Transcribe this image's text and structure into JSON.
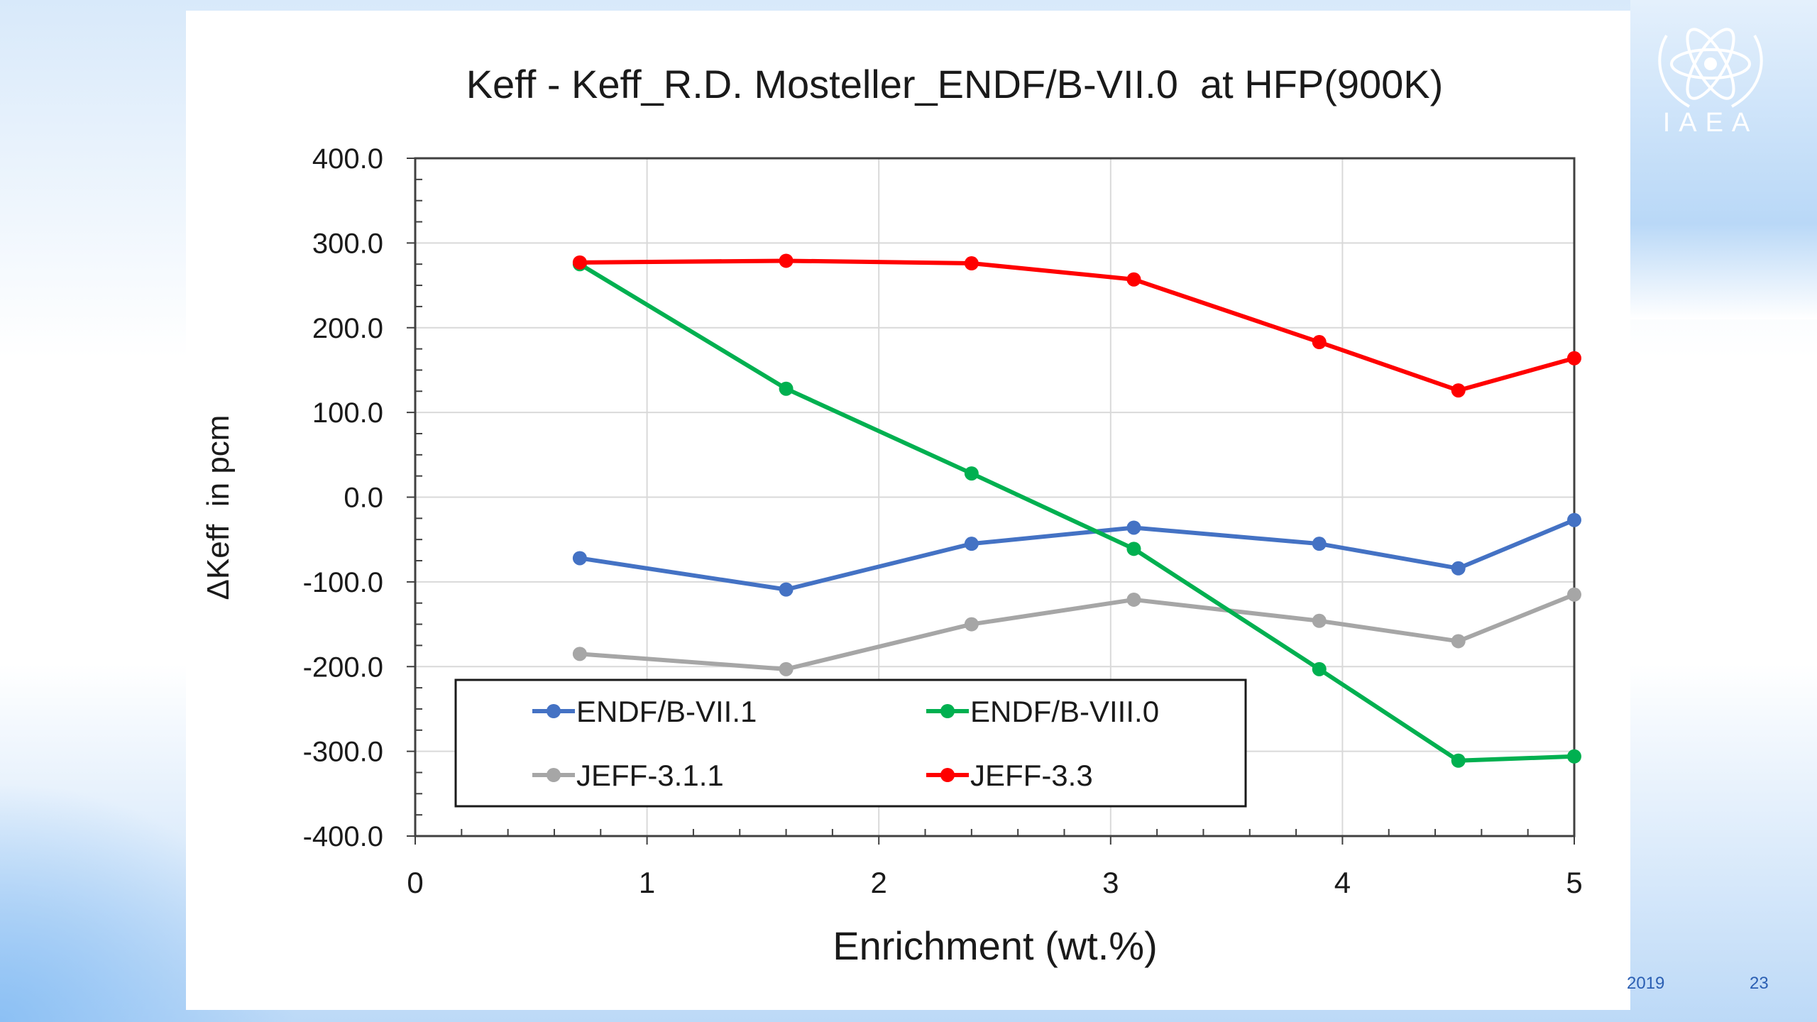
{
  "slide": {
    "logo_text": "IAEA",
    "footer_year_fragment": "2019",
    "page_number": "23"
  },
  "colors": {
    "blue": "#4472c4",
    "green": "#00b050",
    "gray": "#a6a6a6",
    "red": "#ff0000"
  },
  "chart_data": {
    "type": "line",
    "title": "Keff - Keff_R.D. Mosteller_ENDF/B-VII.0  at HFP(900K)",
    "xlabel": "Enrichment (wt.%)",
    "ylabel": "ΔKeff  in pcm",
    "xlim": [
      0,
      5
    ],
    "ylim": [
      -400,
      400
    ],
    "x_ticks": [
      "0",
      "1",
      "2",
      "3",
      "4",
      "5"
    ],
    "y_ticks": [
      "400.0",
      "300.0",
      "200.0",
      "100.0",
      "0.0",
      "-100.0",
      "-200.0",
      "-300.0",
      "-400.0"
    ],
    "grid": true,
    "legend_position": "bottom-left inside plot",
    "x": [
      0.71,
      1.6,
      2.4,
      3.1,
      3.9,
      4.5,
      5.0
    ],
    "series": [
      {
        "name": "ENDF/B-VII.1",
        "color": "#4472c4",
        "values": [
          -72,
          -109,
          -55,
          -36,
          -55,
          -84,
          -27
        ]
      },
      {
        "name": "ENDF/B-VIII.0",
        "color": "#00b050",
        "values": [
          275,
          128,
          28,
          -61,
          -203,
          -311,
          -306
        ]
      },
      {
        "name": "JEFF-3.1.1",
        "color": "#a6a6a6",
        "values": [
          -185,
          -203,
          -150,
          -121,
          -146,
          -170,
          -115
        ]
      },
      {
        "name": "JEFF-3.3",
        "color": "#ff0000",
        "values": [
          277,
          279,
          276,
          257,
          183,
          126,
          164
        ]
      }
    ]
  }
}
